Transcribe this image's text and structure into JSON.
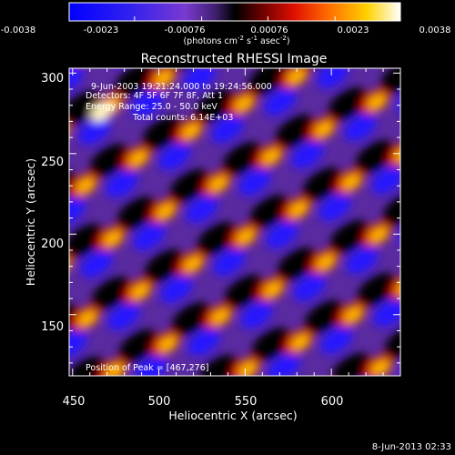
{
  "chart_data": {
    "type": "heatmap",
    "title": "Reconstructed RHESSI Image",
    "xlabel": "Heliocentric X (arcsec)",
    "ylabel": "Heliocentric Y (arcsec)",
    "xlim": [
      448,
      640
    ],
    "ylim": [
      112,
      303
    ],
    "x_ticks": [
      "450",
      "500",
      "550",
      "600"
    ],
    "x_tick_values": [
      450,
      500,
      550,
      600
    ],
    "y_ticks": [
      "150",
      "200",
      "250",
      "300"
    ],
    "y_tick_values": [
      150,
      200,
      250,
      300
    ],
    "colorbar": {
      "range": [
        -0.0038,
        0.0038
      ],
      "tick_labels": [
        "-0.0038",
        "-0.0023",
        "-0.00076",
        "0.00076",
        "0.0023",
        "0.0038"
      ],
      "tick_values": [
        -0.0038,
        -0.0023,
        -0.00076,
        0.00076,
        0.0023,
        0.0038
      ],
      "units_line": "(photons cm",
      "units_exp1": "-2",
      "units_mid": " s",
      "units_exp2": "-1",
      "units_end": " asec",
      "units_exp3": "-2",
      "units_close": ")"
    },
    "annotations": {
      "time_range": "9-Jun-2003 19:21:24.000 to 19:24:56.000",
      "detectors": "Detectors: 4F 5F 6F 7F 8F, Att 1",
      "energy": "Energy Range: 25.0 - 50.0 keV",
      "counts": "Total counts: 6.14E+03",
      "peak": "Position of Peak = [467,276]"
    },
    "peak_position": [
      467,
      276
    ],
    "footer_timestamp": "8-Jun-2013 02:33"
  }
}
